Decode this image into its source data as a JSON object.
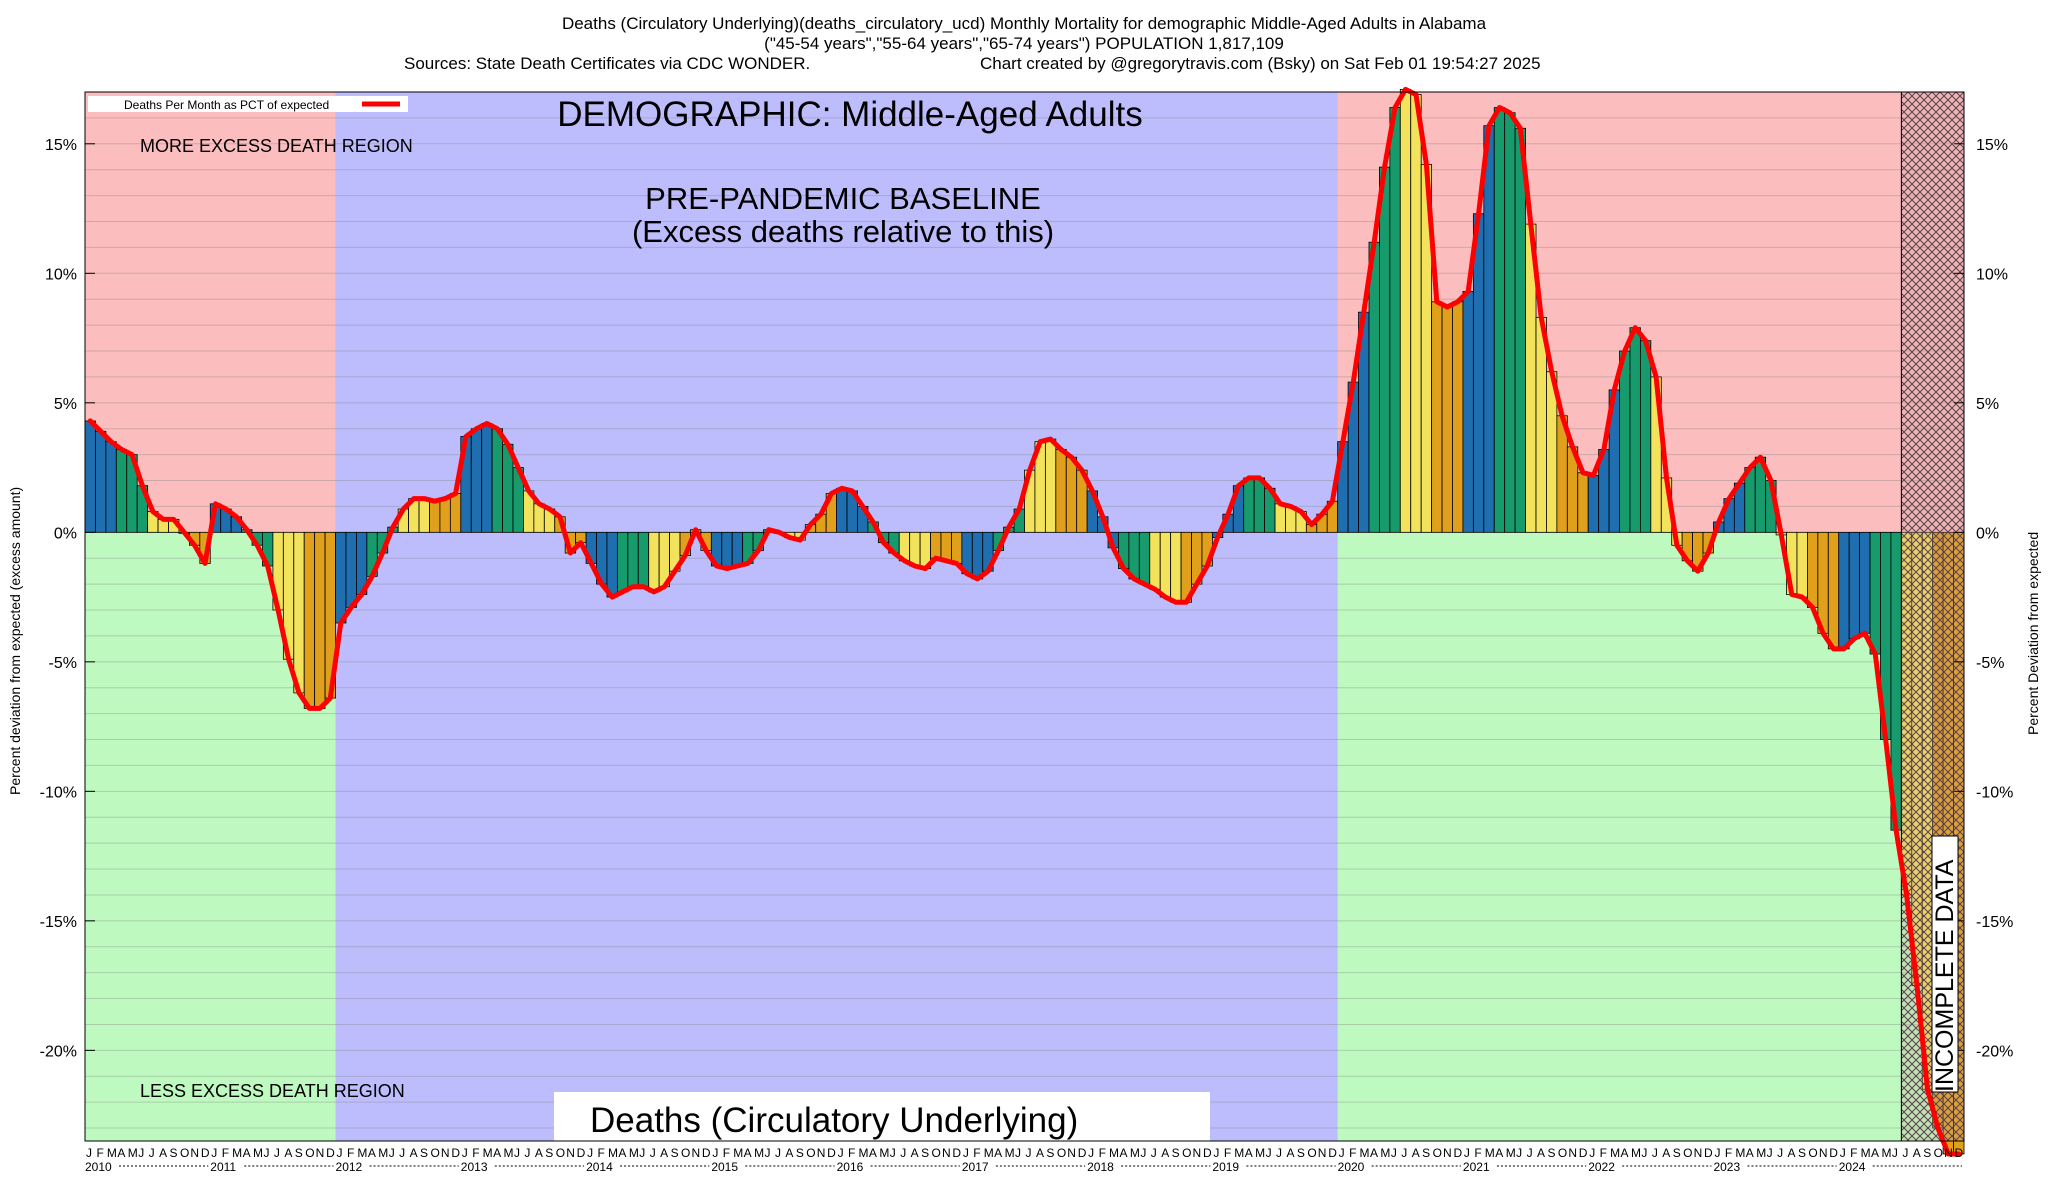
{
  "header": {
    "title_line": "Deaths (Circulatory Underlying)(deaths_circulatory_ucd) Monthly Mortality for demographic Middle-Aged Adults in Alabama",
    "age_line": "(\"45-54 years\",\"55-64 years\",\"65-74 years\") POPULATION 1,817,109",
    "sources": "Sources: State Death Certificates via CDC WONDER.",
    "credit": "Chart created by @gregorytravis.com (Bsky) on Sat Feb 01 19:54:27 2025"
  },
  "chart_data": {
    "type": "bar",
    "title": "DEMOGRAPHIC: Middle-Aged Adults",
    "baseline_label_1": "PRE-PANDEMIC BASELINE",
    "baseline_label_2": "(Excess deaths relative to this)",
    "more_region_label": "MORE EXCESS DEATH REGION",
    "less_region_label": "LESS EXCESS DEATH REGION",
    "bottom_label": "Deaths (Circulatory Underlying)",
    "incomplete_label": "INCOMPLETE DATA",
    "legend": "Deaths Per Month as PCT of expected",
    "ylabel_left": "Percent deviation from expected (excess amount)",
    "ylabel_right": "Percent Deviation from expected",
    "ylim": [
      -23.5,
      17
    ],
    "yticks": [
      15,
      10,
      5,
      0,
      -5,
      -10,
      -15,
      -20
    ],
    "ytick_labels": [
      "15%",
      "10%",
      "5%",
      "0%",
      "-5%",
      "-10%",
      "-15%",
      "-20%"
    ],
    "years": [
      "2010",
      "2011",
      "2012",
      "2013",
      "2014",
      "2015",
      "2016",
      "2017",
      "2018",
      "2019",
      "2020",
      "2021",
      "2022",
      "2023",
      "2024"
    ],
    "month_letters": [
      "J",
      "F",
      "M",
      "A",
      "M",
      "J",
      "J",
      "A",
      "S",
      "O",
      "N",
      "D"
    ],
    "baseline_period": [
      "2012-01",
      "2019-12"
    ],
    "incomplete_period": [
      "2024-07",
      "2024-12"
    ],
    "start_month": "2010-01",
    "colors": {
      "excess_region": "#fbbdbe",
      "less_region": "#bef9bf",
      "baseline_region": "#bdbdfd",
      "incomplete_region": "#d9a0a8",
      "line": "#ff0000",
      "bars": [
        "#1f6fb0",
        "#179a6c",
        "#f2e25c",
        "#e0a01c"
      ]
    },
    "values": [
      4.3,
      3.9,
      3.5,
      3.2,
      3.0,
      1.8,
      0.8,
      0.5,
      0.5,
      0.0,
      -0.5,
      -1.2,
      1.1,
      0.9,
      0.6,
      0.1,
      -0.5,
      -1.3,
      -3.0,
      -4.9,
      -6.2,
      -6.8,
      -6.8,
      -6.4,
      -3.5,
      -2.9,
      -2.4,
      -1.7,
      -0.8,
      0.2,
      0.9,
      1.3,
      1.3,
      1.2,
      1.3,
      1.5,
      3.7,
      4.0,
      4.2,
      4.0,
      3.4,
      2.5,
      1.6,
      1.1,
      0.9,
      0.6,
      -0.8,
      -0.4,
      -1.2,
      -2.0,
      -2.5,
      -2.3,
      -2.1,
      -2.1,
      -2.3,
      -2.1,
      -1.5,
      -0.9,
      0.1,
      -0.7,
      -1.3,
      -1.4,
      -1.3,
      -1.2,
      -0.7,
      0.1,
      0.0,
      -0.2,
      -0.3,
      0.3,
      0.7,
      1.5,
      1.7,
      1.6,
      1.0,
      0.4,
      -0.4,
      -0.8,
      -1.1,
      -1.3,
      -1.4,
      -1.0,
      -1.1,
      -1.2,
      -1.6,
      -1.8,
      -1.5,
      -0.7,
      0.2,
      0.9,
      2.4,
      3.5,
      3.6,
      3.2,
      2.9,
      2.4,
      1.6,
      0.6,
      -0.6,
      -1.4,
      -1.8,
      -2.0,
      -2.2,
      -2.5,
      -2.7,
      -2.7,
      -2.0,
      -1.3,
      -0.2,
      0.7,
      1.8,
      2.1,
      2.1,
      1.7,
      1.1,
      1.0,
      0.8,
      0.3,
      0.7,
      1.2,
      3.5,
      5.8,
      8.5,
      11.2,
      14.1,
      16.4,
      17.1,
      16.9,
      14.2,
      8.9,
      8.7,
      8.9,
      9.3,
      12.3,
      15.7,
      16.4,
      16.2,
      15.6,
      11.9,
      8.3,
      6.2,
      4.5,
      3.3,
      2.3,
      2.2,
      3.2,
      5.5,
      7.0,
      7.9,
      7.4,
      6.0,
      2.1,
      -0.5,
      -1.1,
      -1.5,
      -0.8,
      0.4,
      1.3,
      1.9,
      2.5,
      2.9,
      2.0,
      -0.1,
      -2.4,
      -2.5,
      -2.9,
      -3.9,
      -4.5,
      -4.5,
      -4.1,
      -3.9,
      -4.7,
      -8.0,
      -11.5,
      -14.0,
      -17.5,
      -21.5,
      -23.0,
      -24.0,
      -24.0
    ]
  }
}
